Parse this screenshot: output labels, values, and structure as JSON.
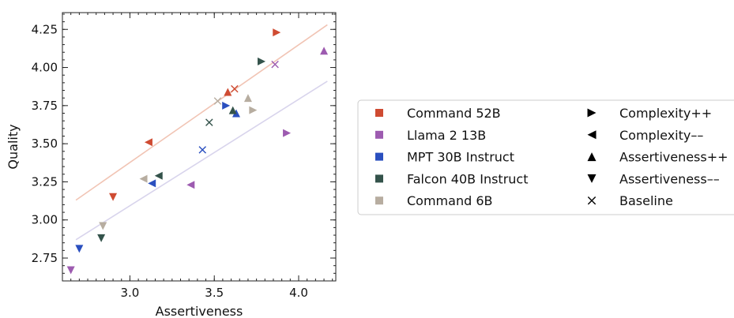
{
  "chart_data": {
    "type": "scatter",
    "xlabel": "Assertiveness",
    "ylabel": "Quality",
    "xlim": [
      2.6,
      4.22
    ],
    "ylim": [
      2.6,
      4.36
    ],
    "xticks": [
      "3.0",
      "3.5",
      "4.0"
    ],
    "yticks": [
      "2.75",
      "3.00",
      "3.25",
      "3.50",
      "3.75",
      "4.00",
      "4.25"
    ],
    "legend_position": "right",
    "grid": false,
    "models": [
      {
        "name": "Command 52B",
        "color": "#cf4b32"
      },
      {
        "name": "Llama 2 13B",
        "color": "#9d5bb0"
      },
      {
        "name": "MPT 30B Instruct",
        "color": "#2a4fbf"
      },
      {
        "name": "Falcon 40B Instruct",
        "color": "#34534b"
      },
      {
        "name": "Command 6B",
        "color": "#b7ada0"
      }
    ],
    "conditions": [
      {
        "name": "Complexity++",
        "marker": "triangle-right"
      },
      {
        "name": "Complexity––",
        "marker": "triangle-left"
      },
      {
        "name": "Assertiveness++",
        "marker": "triangle-up"
      },
      {
        "name": "Assertiveness––",
        "marker": "triangle-down"
      },
      {
        "name": "Baseline",
        "marker": "x"
      }
    ],
    "points": [
      {
        "model": "Command 52B",
        "marker": "triangle-right",
        "x": 3.87,
        "y": 4.23
      },
      {
        "model": "Command 52B",
        "marker": "x",
        "x": 3.62,
        "y": 3.86
      },
      {
        "model": "Command 52B",
        "marker": "triangle-up",
        "x": 3.58,
        "y": 3.84
      },
      {
        "model": "Command 52B",
        "marker": "triangle-left",
        "x": 3.11,
        "y": 3.51
      },
      {
        "model": "Command 52B",
        "marker": "triangle-down",
        "x": 2.9,
        "y": 3.15
      },
      {
        "model": "Llama 2 13B",
        "marker": "triangle-up",
        "x": 4.15,
        "y": 4.11
      },
      {
        "model": "Llama 2 13B",
        "marker": "x",
        "x": 3.86,
        "y": 4.02
      },
      {
        "model": "Llama 2 13B",
        "marker": "triangle-right",
        "x": 3.93,
        "y": 3.57
      },
      {
        "model": "Llama 2 13B",
        "marker": "triangle-left",
        "x": 3.36,
        "y": 3.23
      },
      {
        "model": "Llama 2 13B",
        "marker": "triangle-down",
        "x": 2.65,
        "y": 2.67
      },
      {
        "model": "MPT 30B Instruct",
        "marker": "triangle-right",
        "x": 3.57,
        "y": 3.75
      },
      {
        "model": "MPT 30B Instruct",
        "marker": "triangle-up",
        "x": 3.63,
        "y": 3.7
      },
      {
        "model": "MPT 30B Instruct",
        "marker": "x",
        "x": 3.43,
        "y": 3.46
      },
      {
        "model": "MPT 30B Instruct",
        "marker": "triangle-left",
        "x": 3.13,
        "y": 3.24
      },
      {
        "model": "MPT 30B Instruct",
        "marker": "triangle-down",
        "x": 2.7,
        "y": 2.81
      },
      {
        "model": "Falcon 40B Instruct",
        "marker": "triangle-right",
        "x": 3.78,
        "y": 4.04
      },
      {
        "model": "Falcon 40B Instruct",
        "marker": "triangle-up",
        "x": 3.61,
        "y": 3.72
      },
      {
        "model": "Falcon 40B Instruct",
        "marker": "x",
        "x": 3.47,
        "y": 3.64
      },
      {
        "model": "Falcon 40B Instruct",
        "marker": "triangle-left",
        "x": 3.17,
        "y": 3.29
      },
      {
        "model": "Falcon 40B Instruct",
        "marker": "triangle-down",
        "x": 2.83,
        "y": 2.88
      },
      {
        "model": "Command 6B",
        "marker": "x",
        "x": 3.52,
        "y": 3.78
      },
      {
        "model": "Command 6B",
        "marker": "triangle-up",
        "x": 3.7,
        "y": 3.8
      },
      {
        "model": "Command 6B",
        "marker": "triangle-right",
        "x": 3.73,
        "y": 3.72
      },
      {
        "model": "Command 6B",
        "marker": "triangle-left",
        "x": 3.08,
        "y": 3.27
      },
      {
        "model": "Command 6B",
        "marker": "triangle-down",
        "x": 2.84,
        "y": 2.96
      }
    ],
    "trend_lines": [
      {
        "color": "#f1c4b4",
        "x": [
          2.68,
          4.17
        ],
        "y": [
          3.13,
          4.28
        ]
      },
      {
        "color": "#d8d4ec",
        "x": [
          2.68,
          4.17
        ],
        "y": [
          2.87,
          3.91
        ]
      }
    ]
  }
}
